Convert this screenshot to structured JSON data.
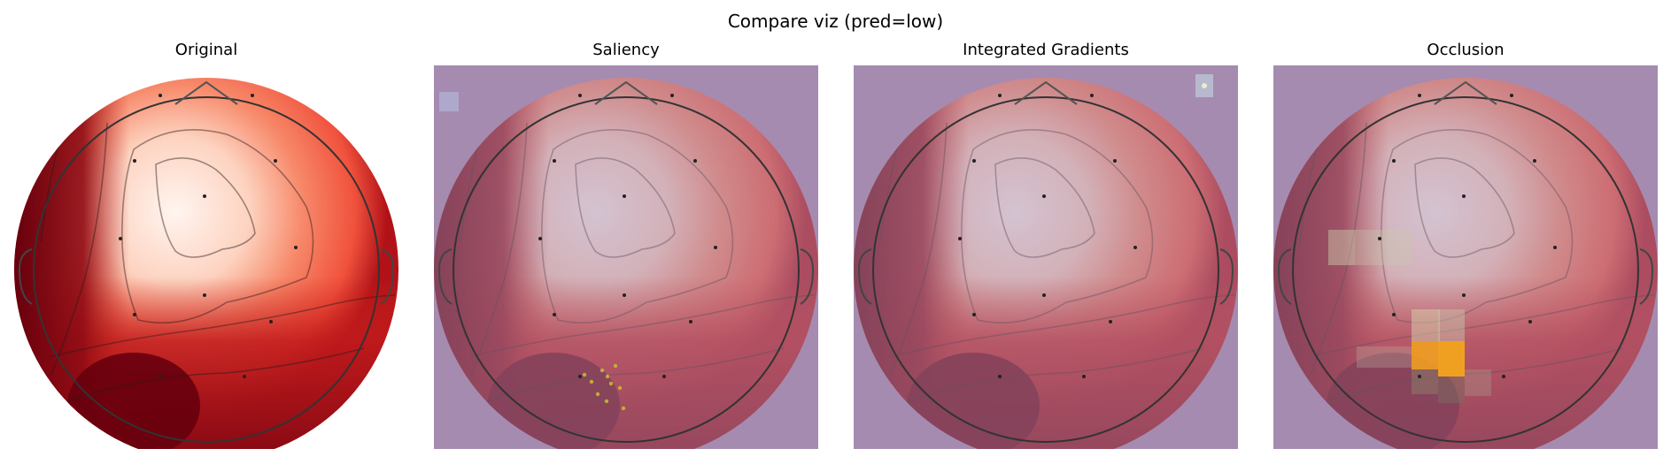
{
  "figure": {
    "suptitle": "Compare viz (pred=low)"
  },
  "panels": [
    {
      "title": "Original",
      "overlay": null
    },
    {
      "title": "Saliency",
      "overlay": "saliency"
    },
    {
      "title": "Integrated Gradients",
      "overlay": "integrated-gradients"
    },
    {
      "title": "Occlusion",
      "overlay": "occlusion"
    }
  ],
  "colors": {
    "map_low": "#fff5f0",
    "map_mid": "#f0513c",
    "map_high": "#67000d",
    "overlay_tint": "#a58bb0",
    "occlusion_hot": "#f0a020",
    "saliency_hot": "#c8c030"
  }
}
